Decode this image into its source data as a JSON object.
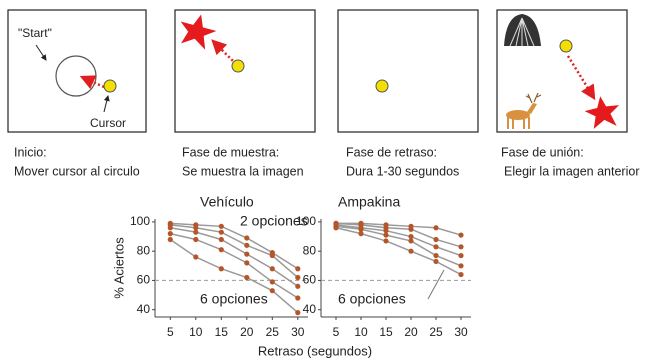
{
  "panels": [
    {
      "labels": [
        "\"Start\"",
        "Cursor"
      ],
      "caption": [
        "Inicio:",
        "Mover cursor al circulo"
      ]
    },
    {
      "caption": [
        "Fase de muestra:",
        "Se muestra la imagen"
      ]
    },
    {
      "caption": [
        "Fase de retraso:",
        "Dura 1-30 segundos"
      ]
    },
    {
      "caption": [
        "Fase de unión:",
        "Elegir la imagen anterior"
      ]
    }
  ],
  "chart_data": [
    {
      "type": "line",
      "title": "Vehículo",
      "ylabel": "% Aciertos",
      "xlabel": "Retraso (segundos)",
      "x": [
        5,
        10,
        15,
        20,
        25,
        30
      ],
      "xlim": [
        2,
        32
      ],
      "xticks": [
        5,
        10,
        15,
        20,
        25,
        30
      ],
      "ylim": [
        35,
        102
      ],
      "yticks": [
        40,
        60,
        80,
        100
      ],
      "hline": 60,
      "line_color": "#9a9a9a",
      "marker_color": "#b5562a",
      "annotations": [
        "2 opciones",
        "6 opciones"
      ],
      "series": [
        {
          "values": [
            99,
            98,
            97,
            89,
            79,
            68
          ]
        },
        {
          "values": [
            98,
            96,
            93,
            84,
            77,
            62
          ]
        },
        {
          "values": [
            96,
            93,
            88,
            78,
            68,
            56
          ]
        },
        {
          "values": [
            92,
            88,
            81,
            72,
            59,
            48
          ]
        },
        {
          "values": [
            88,
            76,
            68,
            62,
            53,
            38
          ]
        }
      ]
    },
    {
      "type": "line",
      "title": "Ampakina",
      "x": [
        5,
        10,
        15,
        20,
        25,
        30
      ],
      "xlim": [
        2,
        32
      ],
      "xticks": [
        5,
        10,
        15,
        20,
        25,
        30
      ],
      "ylim": [
        35,
        102
      ],
      "yticks": [
        40,
        60,
        80,
        100
      ],
      "hline": 60,
      "line_color": "#9a9a9a",
      "marker_color": "#b5562a",
      "annotations": [
        "6 opciones"
      ],
      "series": [
        {
          "values": [
            99,
            99,
            98,
            97,
            96,
            91
          ]
        },
        {
          "values": [
            99,
            98,
            96,
            95,
            88,
            83
          ]
        },
        {
          "values": [
            98,
            96,
            94,
            90,
            83,
            77
          ]
        },
        {
          "values": [
            97,
            95,
            91,
            87,
            77,
            70
          ]
        },
        {
          "values": [
            96,
            92,
            87,
            80,
            73,
            64
          ]
        }
      ]
    }
  ]
}
